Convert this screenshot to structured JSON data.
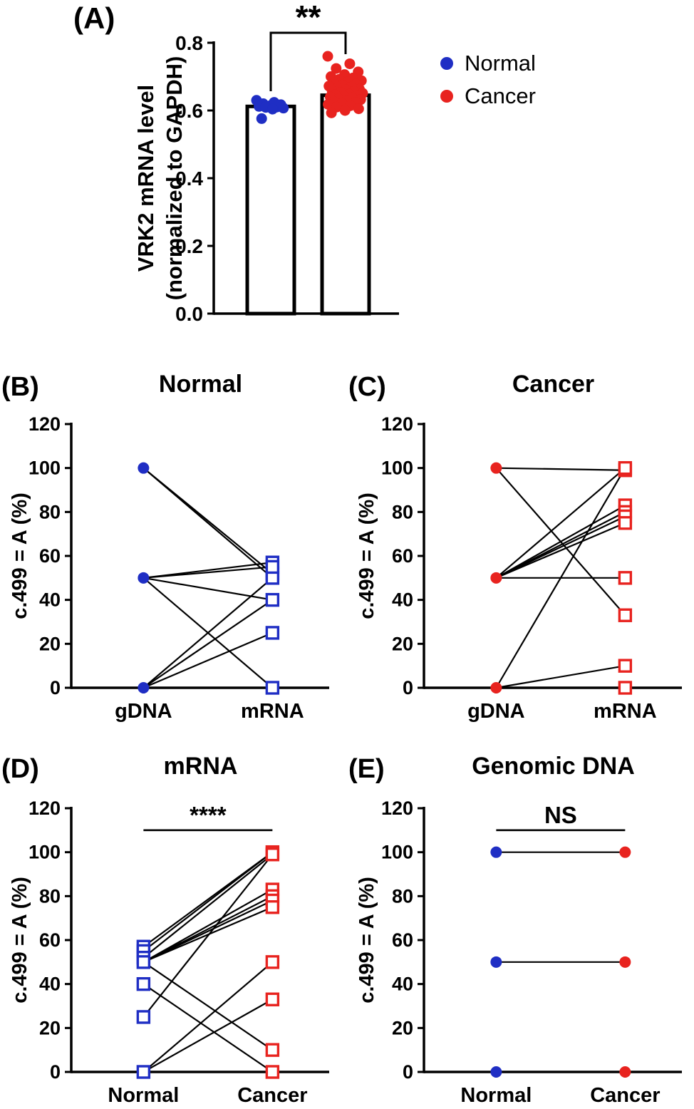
{
  "colors": {
    "normal_blue": "#1f2ec4",
    "cancer_red": "#e8231f",
    "axis_black": "#000000"
  },
  "legend": {
    "items": [
      {
        "label": "Normal",
        "color": "#1f2ec4"
      },
      {
        "label": "Cancer",
        "color": "#e8231f"
      }
    ]
  },
  "chart_data": [
    {
      "id": "A",
      "panel_label": "(A)",
      "type": "bar-scatter",
      "ylabel_line1": "VRK2 mRNA level",
      "ylabel_line2": "(normalized to GAPDH)",
      "ylim": [
        0,
        0.8
      ],
      "yticks": [
        0,
        0.2,
        0.4,
        0.6,
        0.8
      ],
      "categories": [
        "Normal",
        "Cancer"
      ],
      "bar_values": [
        0.612,
        0.645
      ],
      "significance": {
        "text": "**"
      },
      "series": [
        {
          "name": "Normal",
          "color": "#1f2ec4",
          "points": [
            0.63,
            0.624,
            0.62,
            0.617,
            0.614,
            0.612,
            0.61,
            0.609,
            0.607,
            0.604,
            0.576
          ]
        },
        {
          "name": "Cancer",
          "color": "#e8231f",
          "points": [
            0.76,
            0.738,
            0.724,
            0.714,
            0.706,
            0.7,
            0.696,
            0.692,
            0.688,
            0.684,
            0.681,
            0.678,
            0.675,
            0.672,
            0.669,
            0.666,
            0.663,
            0.661,
            0.658,
            0.656,
            0.653,
            0.651,
            0.648,
            0.646,
            0.644,
            0.642,
            0.64,
            0.637,
            0.635,
            0.632,
            0.63,
            0.627,
            0.624,
            0.621,
            0.618,
            0.614,
            0.61,
            0.605,
            0.6,
            0.593
          ]
        }
      ]
    },
    {
      "id": "B",
      "panel_label": "(B)",
      "title": "Normal",
      "type": "paired-scatter",
      "ylabel": "c.499 = A (%)",
      "ylim": [
        0,
        120
      ],
      "ytick_step": 20,
      "categories": [
        "gDNA",
        "mRNA"
      ],
      "left_marker": {
        "shape": "circle",
        "fill": "solid",
        "color": "#1f2ec4"
      },
      "right_marker": {
        "shape": "square",
        "fill": "open",
        "color": "#1f2ec4"
      },
      "pairs": [
        [
          100,
          52
        ],
        [
          100,
          50
        ],
        [
          50,
          57
        ],
        [
          50,
          55
        ],
        [
          50,
          40
        ],
        [
          50,
          0
        ],
        [
          0,
          50
        ],
        [
          0,
          40
        ],
        [
          0,
          25
        ],
        [
          0,
          0
        ]
      ],
      "significance": null
    },
    {
      "id": "C",
      "panel_label": "(C)",
      "title": "Cancer",
      "type": "paired-scatter",
      "ylabel": "c.499 = A (%)",
      "ylim": [
        0,
        120
      ],
      "ytick_step": 20,
      "categories": [
        "gDNA",
        "mRNA"
      ],
      "left_marker": {
        "shape": "circle",
        "fill": "solid",
        "color": "#e8231f"
      },
      "right_marker": {
        "shape": "square",
        "fill": "open",
        "color": "#e8231f"
      },
      "pairs": [
        [
          100,
          99
        ],
        [
          100,
          33
        ],
        [
          50,
          100
        ],
        [
          50,
          83
        ],
        [
          50,
          80
        ],
        [
          50,
          78
        ],
        [
          50,
          75
        ],
        [
          50,
          50
        ],
        [
          0,
          100
        ],
        [
          0,
          10
        ],
        [
          0,
          0
        ]
      ],
      "significance": null
    },
    {
      "id": "D",
      "panel_label": "(D)",
      "title": "mRNA",
      "type": "paired-scatter",
      "ylabel": "c.499 = A (%)",
      "ylim": [
        0,
        120
      ],
      "ytick_step": 20,
      "categories": [
        "Normal",
        "Cancer"
      ],
      "left_marker": {
        "shape": "square",
        "fill": "open",
        "color": "#1f2ec4"
      },
      "right_marker": {
        "shape": "square",
        "fill": "open",
        "color": "#e8231f"
      },
      "pairs": [
        [
          57,
          100
        ],
        [
          55,
          100
        ],
        [
          52,
          99
        ],
        [
          50,
          83
        ],
        [
          50,
          80
        ],
        [
          50,
          78
        ],
        [
          50,
          75
        ],
        [
          50,
          10
        ],
        [
          40,
          0
        ],
        [
          25,
          99
        ],
        [
          0,
          50
        ],
        [
          0,
          33
        ]
      ],
      "significance": {
        "text": "****",
        "y": 110
      }
    },
    {
      "id": "E",
      "panel_label": "(E)",
      "title": "Genomic DNA",
      "type": "paired-scatter",
      "ylabel": "c.499 = A (%)",
      "ylim": [
        0,
        120
      ],
      "ytick_step": 20,
      "categories": [
        "Normal",
        "Cancer"
      ],
      "left_marker": {
        "shape": "circle",
        "fill": "solid",
        "color": "#1f2ec4"
      },
      "right_marker": {
        "shape": "circle",
        "fill": "solid",
        "color": "#e8231f"
      },
      "pairs": [
        [
          100,
          100
        ],
        [
          50,
          50
        ],
        [
          0,
          0
        ]
      ],
      "significance": {
        "text": "NS",
        "y": 110
      }
    }
  ]
}
